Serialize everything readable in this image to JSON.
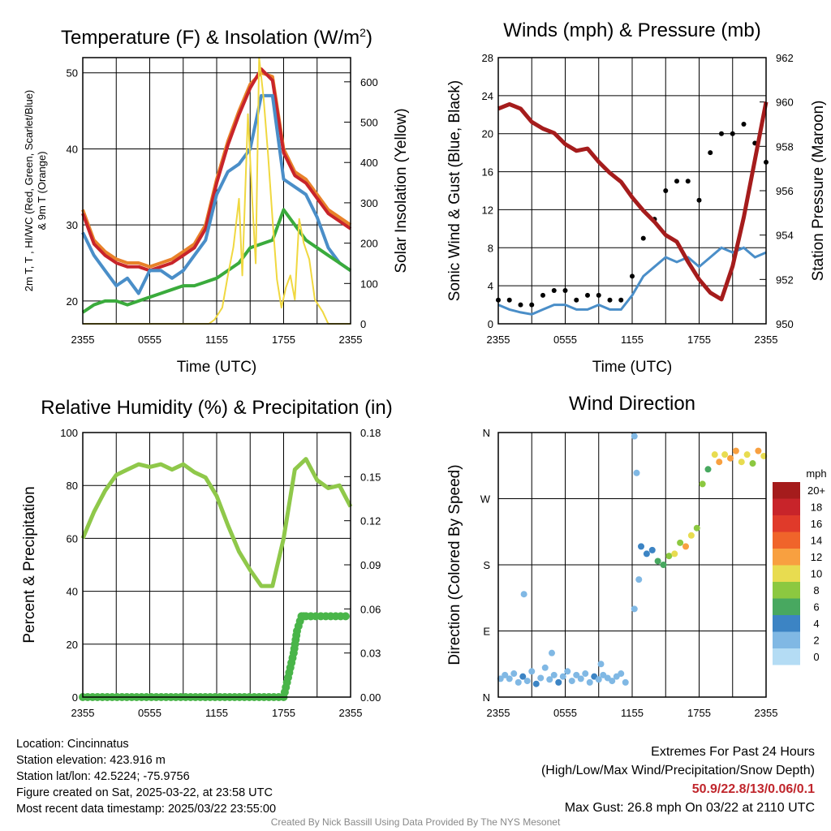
{
  "chart_data": [
    {
      "type": "line",
      "title": "Temperature (F) & Insolation (W/m",
      "title_sup": "2",
      "title_close": ")",
      "xlabel": "Time (UTC)",
      "ylabel_left": "2m T, T  , HI/WC (Red, Green, Scarlet/Blue)",
      "ylabel_left_sub": "d",
      "ylabel_left_2": "& 9m T (Orange)",
      "ylabel_right": "Solar Insolation (Yellow)",
      "x_ticks": [
        "2355",
        "0555",
        "1155",
        "1755",
        "2355"
      ],
      "ylim_left": [
        17,
        52
      ],
      "yticks_left": [
        20,
        30,
        40,
        50
      ],
      "ylim_right": [
        0,
        660
      ],
      "yticks_right": [
        0,
        100,
        200,
        300,
        400,
        500,
        600
      ],
      "series": [
        {
          "color": "#e8822a",
          "axis": "left",
          "x": [
            0,
            1,
            2,
            3,
            4,
            5,
            6,
            7,
            8,
            9,
            10,
            11,
            12,
            13,
            14,
            15,
            16,
            17,
            18,
            19,
            20,
            21,
            22,
            23,
            24
          ],
          "values": [
            32,
            28,
            26.5,
            25.5,
            25,
            25,
            24.5,
            25,
            25.5,
            26.5,
            27.5,
            30,
            36,
            41,
            45,
            48.5,
            50,
            49.5,
            40,
            37,
            36,
            34,
            32,
            31,
            30
          ]
        },
        {
          "color": "#c8242a",
          "axis": "left",
          "x": [
            0,
            1,
            2,
            3,
            4,
            5,
            6,
            7,
            8,
            9,
            10,
            11,
            12,
            13,
            14,
            15,
            16,
            17,
            18,
            19,
            20,
            21,
            22,
            23,
            24
          ],
          "values": [
            31.5,
            27.5,
            26,
            25,
            24.5,
            24.5,
            24,
            24.5,
            25,
            26,
            27,
            29.5,
            35.5,
            40.5,
            44.5,
            48,
            50.5,
            49,
            39.5,
            36.5,
            35.5,
            33.5,
            31.5,
            30.5,
            29.5
          ]
        },
        {
          "color": "#4a8ec8",
          "axis": "left",
          "x": [
            0,
            1,
            2,
            3,
            4,
            5,
            6,
            7,
            8,
            9,
            10,
            11,
            12,
            13,
            14,
            15,
            16,
            17,
            18,
            19,
            20,
            21,
            22,
            23,
            24
          ],
          "values": [
            29,
            26,
            24,
            22,
            23,
            21,
            24,
            24,
            23,
            24,
            26,
            28,
            34,
            37,
            38,
            40,
            47,
            47,
            36,
            35,
            34,
            31,
            27,
            25,
            24
          ]
        },
        {
          "color": "#3aab3c",
          "axis": "left",
          "x": [
            0,
            1,
            2,
            3,
            4,
            5,
            6,
            7,
            8,
            9,
            10,
            11,
            12,
            13,
            14,
            15,
            16,
            17,
            18,
            19,
            20,
            21,
            22,
            23,
            24
          ],
          "values": [
            18.5,
            19.5,
            20,
            20,
            19.5,
            20,
            20.5,
            21,
            21.5,
            22,
            22,
            22.5,
            23,
            24,
            25,
            27,
            27.5,
            28,
            32,
            30,
            28,
            27,
            26,
            25,
            24
          ]
        },
        {
          "color": "#f0d840",
          "axis": "right",
          "x": [
            0,
            11.3,
            11.8,
            12.5,
            13,
            13.5,
            14,
            14.3,
            14.8,
            15.2,
            15.5,
            15.8,
            16.2,
            16.6,
            17,
            17.4,
            17.8,
            18.2,
            18.6,
            19,
            19.4,
            19.8,
            20.3,
            20.8,
            21.5,
            22,
            24
          ],
          "values": [
            0,
            0,
            10,
            40,
            120,
            190,
            310,
            120,
            520,
            300,
            150,
            660,
            560,
            420,
            260,
            110,
            40,
            90,
            120,
            60,
            260,
            200,
            160,
            60,
            30,
            0,
            0
          ]
        }
      ]
    },
    {
      "type": "line",
      "title": "Winds (mph) & Pressure (mb)",
      "xlabel": "Time (UTC)",
      "ylabel_left": "Sonic Wind & Gust (Blue, Black)",
      "ylabel_right": "Station Pressure (Maroon)",
      "x_ticks": [
        "2355",
        "0555",
        "1155",
        "1755",
        "2355"
      ],
      "ylim_left": [
        0,
        28
      ],
      "yticks_left": [
        0,
        4,
        8,
        12,
        16,
        20,
        24,
        28
      ],
      "ylim_right": [
        950,
        962
      ],
      "yticks_right": [
        950,
        952,
        954,
        956,
        958,
        960,
        962
      ],
      "series": [
        {
          "name": "pressure",
          "color": "#a51c1c",
          "axis": "right",
          "x": [
            0,
            1,
            2,
            3,
            4,
            5,
            6,
            7,
            8,
            9,
            10,
            11,
            12,
            13,
            14,
            15,
            16,
            17,
            18,
            19,
            20,
            21,
            22,
            23,
            24
          ],
          "values": [
            959.7,
            959.9,
            959.7,
            959.1,
            958.8,
            958.6,
            958.1,
            957.8,
            957.9,
            957.3,
            956.8,
            956.4,
            955.7,
            955.1,
            954.6,
            954.0,
            953.7,
            952.8,
            952.0,
            951.4,
            951.1,
            952.6,
            954.8,
            957.4,
            960.0
          ]
        },
        {
          "name": "wind",
          "color": "#4a8ec8",
          "axis": "left",
          "x": [
            0,
            1,
            2,
            3,
            4,
            5,
            6,
            7,
            8,
            9,
            10,
            11,
            12,
            13,
            14,
            15,
            16,
            17,
            18,
            19,
            20,
            21,
            22,
            23,
            24
          ],
          "values": [
            2,
            1.5,
            1.2,
            1,
            1.5,
            2,
            2,
            1.5,
            1.5,
            2,
            1.5,
            1.5,
            3,
            5,
            6,
            7,
            6.5,
            7,
            6,
            7,
            8,
            7.5,
            8,
            7,
            7.5
          ]
        },
        {
          "name": "gust",
          "color": "#000000",
          "axis": "left",
          "x": [
            0,
            1,
            2,
            3,
            4,
            5,
            6,
            7,
            8,
            9,
            10,
            11,
            12,
            13,
            14,
            15,
            16,
            17,
            18,
            19,
            20,
            21,
            22,
            23,
            24
          ],
          "values": [
            2.5,
            2.5,
            2,
            2,
            3,
            3.5,
            3.5,
            2.5,
            3,
            3,
            2.5,
            2.5,
            5,
            9,
            11,
            14,
            15,
            15,
            13,
            18,
            20,
            20,
            21,
            19,
            17
          ]
        }
      ]
    },
    {
      "type": "line",
      "title": "Relative Humidity (%) & Precipitation (in)",
      "xlabel": "",
      "ylabel_left": "Percent & Precipitation",
      "x_ticks": [
        "2355",
        "0555",
        "1155",
        "1755",
        "2355"
      ],
      "ylim_left": [
        0,
        100
      ],
      "yticks_left": [
        0,
        20,
        40,
        60,
        80,
        100
      ],
      "ylim_right": [
        0,
        0.18
      ],
      "yticks_right": [
        "0.00",
        "0.03",
        "0.06",
        "0.09",
        "0.12",
        "0.15",
        "0.18"
      ],
      "series": [
        {
          "name": "rh",
          "color": "#8fc84a",
          "axis": "left",
          "x": [
            0,
            1,
            2,
            3,
            4,
            5,
            6,
            7,
            8,
            9,
            10,
            11,
            12,
            13,
            14,
            15,
            16,
            17,
            18,
            19,
            20,
            21,
            22,
            23,
            24
          ],
          "values": [
            60,
            70,
            78,
            84,
            86,
            88,
            87,
            88,
            86,
            88,
            85,
            83,
            76,
            65,
            55,
            48,
            42,
            42,
            60,
            86,
            90,
            82,
            79,
            80,
            72
          ]
        },
        {
          "name": "precip",
          "color": "#49b549",
          "axis": "right",
          "x": [
            0,
            18,
            18.3,
            18.6,
            18.9,
            19.2,
            19.6,
            20,
            24
          ],
          "values": [
            0,
            0,
            0.01,
            0.02,
            0.03,
            0.045,
            0.055,
            0.055,
            0.055
          ]
        }
      ]
    },
    {
      "type": "scatter",
      "title": "Wind Direction",
      "ylabel_left": "Direction (Colored By Speed)",
      "x_ticks": [
        "2355",
        "0555",
        "1155",
        "1755",
        "2355"
      ],
      "y_ticks": [
        "N",
        "E",
        "S",
        "W",
        "N"
      ],
      "legend_title": "mph",
      "legend_labels": [
        "20+",
        "18",
        "16",
        "14",
        "12",
        "10",
        "8",
        "6",
        "4",
        "2",
        "0"
      ],
      "legend_colors": [
        "#a51c1c",
        "#c8242a",
        "#e03a2a",
        "#f0642a",
        "#f8a040",
        "#e8dc50",
        "#8cc840",
        "#48a860",
        "#3c84c4",
        "#80b8e4",
        "#b4dcf4"
      ],
      "points": [
        [
          0.2,
          25,
          2
        ],
        [
          0.6,
          30,
          1
        ],
        [
          1.0,
          25,
          2
        ],
        [
          1.4,
          32,
          1
        ],
        [
          1.8,
          20,
          2
        ],
        [
          2.2,
          28,
          3
        ],
        [
          2.6,
          22,
          1
        ],
        [
          3.0,
          35,
          2
        ],
        [
          3.4,
          18,
          3
        ],
        [
          3.8,
          26,
          1
        ],
        [
          4.2,
          40,
          2
        ],
        [
          4.6,
          24,
          1
        ],
        [
          5.0,
          30,
          2
        ],
        [
          5.4,
          20,
          3
        ],
        [
          5.8,
          28,
          1
        ],
        [
          6.2,
          35,
          2
        ],
        [
          6.6,
          22,
          1
        ],
        [
          7.0,
          30,
          2
        ],
        [
          7.4,
          25,
          1
        ],
        [
          7.8,
          32,
          2
        ],
        [
          8.2,
          20,
          1
        ],
        [
          8.6,
          28,
          3
        ],
        [
          9.0,
          24,
          1
        ],
        [
          9.4,
          30,
          2
        ],
        [
          9.8,
          26,
          1
        ],
        [
          10.2,
          22,
          2
        ],
        [
          10.6,
          28,
          1
        ],
        [
          11.0,
          32,
          2
        ],
        [
          11.4,
          20,
          1
        ],
        [
          2.3,
          140,
          1
        ],
        [
          4.8,
          60,
          1
        ],
        [
          9.2,
          45,
          1
        ],
        [
          12.2,
          355,
          1
        ],
        [
          12.4,
          305,
          1
        ],
        [
          12.6,
          160,
          1
        ],
        [
          12.2,
          120,
          1
        ],
        [
          12.8,
          205,
          3
        ],
        [
          13.3,
          195,
          4
        ],
        [
          13.8,
          200,
          3
        ],
        [
          14.3,
          185,
          5
        ],
        [
          14.8,
          180,
          6
        ],
        [
          15.3,
          192,
          8
        ],
        [
          15.8,
          195,
          10
        ],
        [
          16.3,
          210,
          8
        ],
        [
          16.8,
          205,
          12
        ],
        [
          17.3,
          220,
          9
        ],
        [
          17.8,
          230,
          7
        ],
        [
          18.3,
          290,
          8
        ],
        [
          18.8,
          310,
          6
        ],
        [
          19.4,
          330,
          10
        ],
        [
          19.8,
          320,
          12
        ],
        [
          20.3,
          330,
          9
        ],
        [
          20.8,
          325,
          11
        ],
        [
          21.3,
          335,
          12
        ],
        [
          21.8,
          320,
          10
        ],
        [
          22.3,
          330,
          9
        ],
        [
          22.8,
          318,
          7
        ],
        [
          23.3,
          335,
          12
        ],
        [
          23.8,
          328,
          10
        ]
      ]
    }
  ],
  "info": {
    "location": "Location: Cincinnatus",
    "elevation": "Station elevation: 423.916 m",
    "latlon": "Station lat/lon: 42.5224; -75.9756",
    "created": "Figure created on Sat, 2025-03-22, at 23:58 UTC",
    "recent": "Most recent data timestamp: 2025/03/22 23:55:00"
  },
  "extremes": {
    "line1": "Extremes For Past 24 Hours",
    "line2": "(High/Low/Max Wind/Precipitation/Snow Depth)",
    "values": "50.9/22.8/13/0.06/0.1",
    "gust": "Max Gust: 26.8 mph On 03/22 at 2110 UTC"
  },
  "credit": "Created By Nick Bassill Using Data Provided By The NYS Mesonet"
}
